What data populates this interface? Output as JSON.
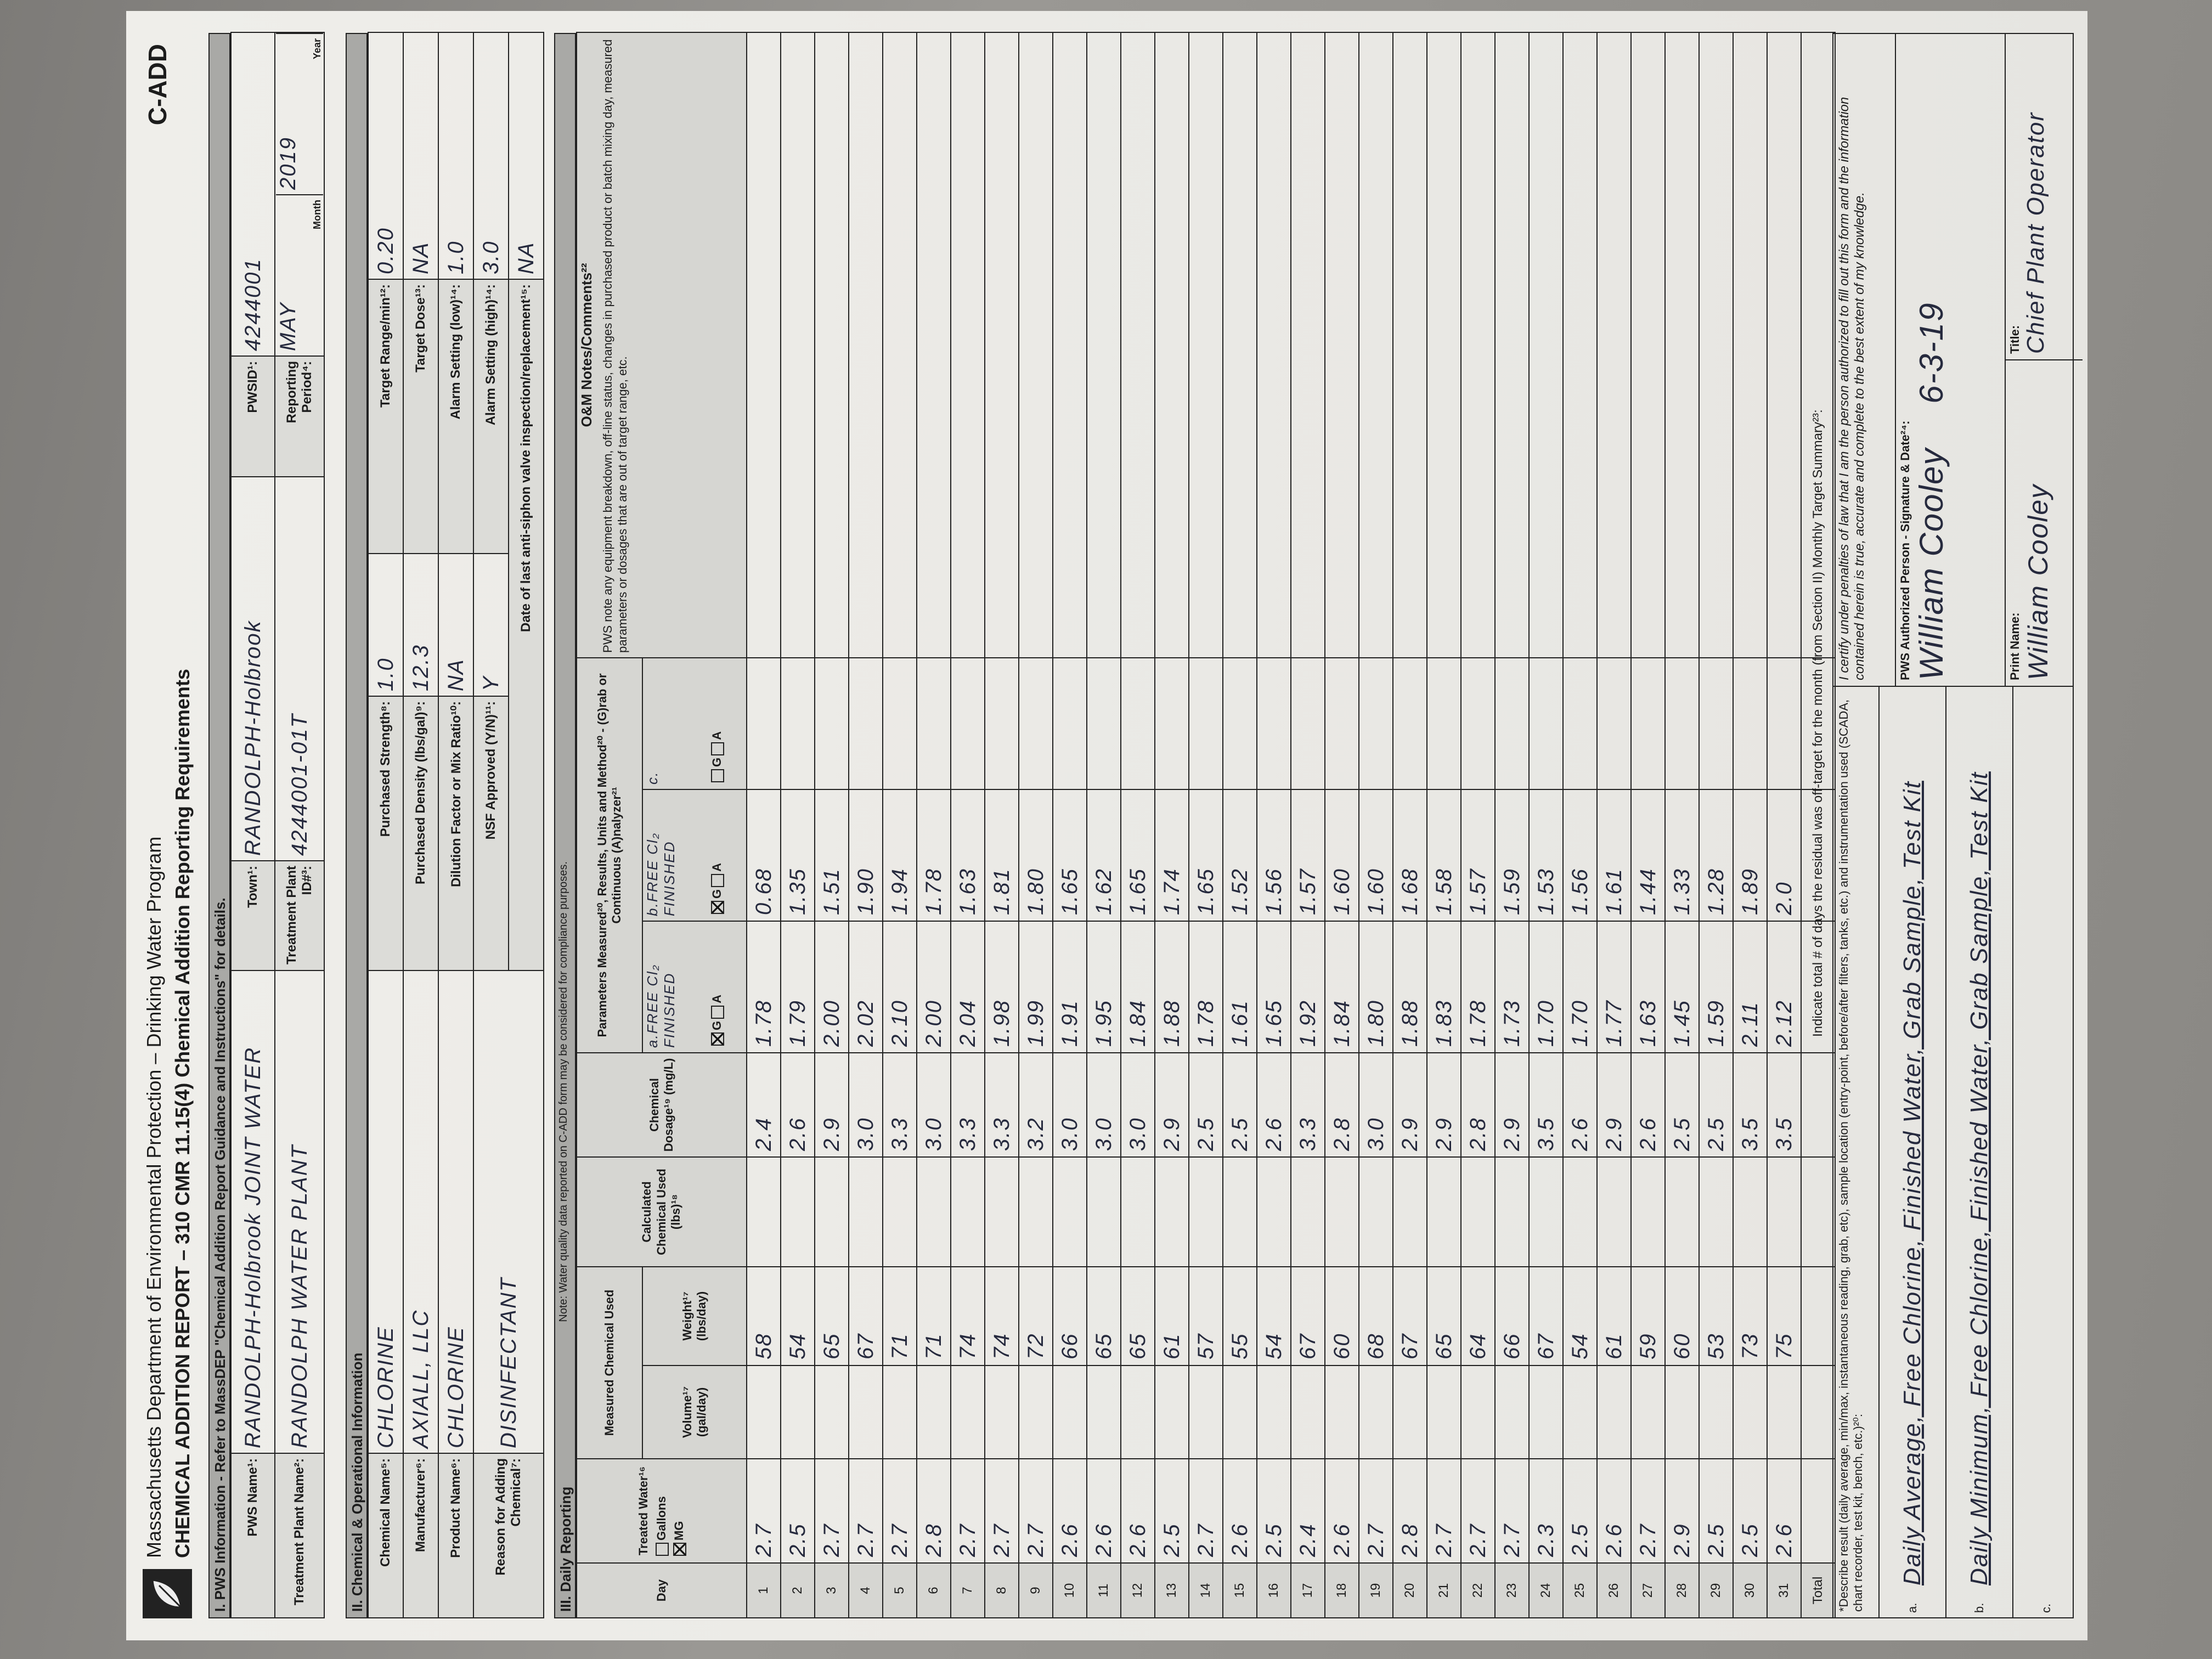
{
  "header": {
    "agency": "Massachusetts Department of Environmental Protection – Drinking Water Program",
    "title": "CHEMICAL ADDITION REPORT – 310 CMR 11.15(4) Chemical Addition Reporting Requirements",
    "form_code": "C-ADD"
  },
  "pws_info": {
    "heading": "I. PWS Information - Refer to MassDEP \"Chemical Addition Report Guidance and Instructions\" for details.",
    "pws_name": {
      "label": "PWS Name¹:",
      "value": "RANDOLPH-Holbrook JOINT WATER"
    },
    "town": {
      "label": "Town¹:",
      "value": "RANDOLPH-Holbrook"
    },
    "pwsid": {
      "label": "PWSID¹:",
      "value": "4244001"
    },
    "plant_name": {
      "label": "Treatment Plant Name²:",
      "value": "RANDOLPH WATER PLANT"
    },
    "plant_id": {
      "label": "Treatment Plant ID#³:",
      "value": "4244001-01T"
    },
    "period": {
      "label": "Reporting Period⁴:",
      "month": "MAY",
      "year": "2019",
      "month_label": "Month",
      "year_label": "Year"
    }
  },
  "chemical_info": {
    "heading": "II. Chemical & Operational Information",
    "name": {
      "label": "Chemical Name⁵:",
      "value": "CHLORINE"
    },
    "manufacturer": {
      "label": "Manufacturer⁶:",
      "value": "AXIALL, LLC"
    },
    "product": {
      "label": "Product Name⁶:",
      "value": "CHLORINE"
    },
    "reason": {
      "label": "Reason for Adding Chemical⁷:",
      "value": "DISINFECTANT"
    },
    "strength": {
      "label": "Purchased Strength⁸:",
      "value": "1.0"
    },
    "density": {
      "label": "Purchased Density (lbs/gal)⁹:",
      "value": "12.3"
    },
    "dilution": {
      "label": "Dilution Factor or Mix Ratio¹⁰:",
      "value": "NA"
    },
    "nsf": {
      "label": "NSF Approved (Y/N)¹¹:",
      "value": "Y"
    },
    "target_range": {
      "label": "Target Range/min¹²:",
      "value": "0.20"
    },
    "target_dose": {
      "label": "Target Dose¹³:",
      "value": "NA"
    },
    "alarm_low": {
      "label": "Alarm Setting (low)¹⁴:",
      "value": "1.0"
    },
    "alarm_high": {
      "label": "Alarm Setting (high)¹⁴:",
      "value": "3.0"
    },
    "valve_date": {
      "label": "Date of last anti-siphon valve inspection/replacement¹⁵:",
      "value": "NA"
    }
  },
  "daily_reporting": {
    "heading": "III. Daily Reporting",
    "note": "Note: Water quality data reported on C-ADD form may be considered for compliance purposes.",
    "columns": {
      "day": "Day",
      "treated": "Treated Water¹⁶",
      "unit_options": [
        "Gallons",
        "MG"
      ],
      "measured": "Measured Chemical Used",
      "volume": "Volume¹⁷ (gal/day)",
      "weight": "Weight¹⁷ (lbs/day)",
      "calculated": "Calculated Chemical Used (lbs)¹⁸",
      "dosage": "Chemical Dosage¹⁹ (mg/L)",
      "parameters": "Parameters Measured²⁰, Results, Units and Method²⁰ - (G)rab or Continuous (A)nalyzer²¹",
      "param_a": "a.FREE Cl₂ FINISHED",
      "param_b": "b.FREE Cl₂ FINISHED",
      "param_c": "c.",
      "method_options": [
        "G",
        "A"
      ],
      "notes": "O&M Notes/Comments²²",
      "notes_hint": "PWS note any equipment breakdown, off-line status, changes in purchased product or batch mixing day, measured parameters or dosages that are out of target range, etc."
    },
    "rows": [
      [
        1,
        "2.7",
        "58",
        "2.4",
        "1.78",
        "0.68"
      ],
      [
        2,
        "2.5",
        "54",
        "2.6",
        "1.79",
        "1.35"
      ],
      [
        3,
        "2.7",
        "65",
        "2.9",
        "2.00",
        "1.51"
      ],
      [
        4,
        "2.7",
        "67",
        "3.0",
        "2.02",
        "1.90"
      ],
      [
        5,
        "2.7",
        "71",
        "3.3",
        "2.10",
        "1.94"
      ],
      [
        6,
        "2.8",
        "71",
        "3.0",
        "2.00",
        "1.78"
      ],
      [
        7,
        "2.7",
        "74",
        "3.3",
        "2.04",
        "1.63"
      ],
      [
        8,
        "2.7",
        "74",
        "3.3",
        "1.98",
        "1.81"
      ],
      [
        9,
        "2.7",
        "72",
        "3.2",
        "1.99",
        "1.80"
      ],
      [
        10,
        "2.6",
        "66",
        "3.0",
        "1.91",
        "1.65"
      ],
      [
        11,
        "2.6",
        "65",
        "3.0",
        "1.95",
        "1.62"
      ],
      [
        12,
        "2.6",
        "65",
        "3.0",
        "1.84",
        "1.65"
      ],
      [
        13,
        "2.5",
        "61",
        "2.9",
        "1.88",
        "1.74"
      ],
      [
        14,
        "2.7",
        "57",
        "2.5",
        "1.78",
        "1.65"
      ],
      [
        15,
        "2.6",
        "55",
        "2.5",
        "1.61",
        "1.52"
      ],
      [
        16,
        "2.5",
        "54",
        "2.6",
        "1.65",
        "1.56"
      ],
      [
        17,
        "2.4",
        "67",
        "3.3",
        "1.92",
        "1.57"
      ],
      [
        18,
        "2.6",
        "60",
        "2.8",
        "1.84",
        "1.60"
      ],
      [
        19,
        "2.7",
        "68",
        "3.0",
        "1.80",
        "1.60"
      ],
      [
        20,
        "2.8",
        "67",
        "2.9",
        "1.88",
        "1.68"
      ],
      [
        21,
        "2.7",
        "65",
        "2.9",
        "1.83",
        "1.58"
      ],
      [
        22,
        "2.7",
        "64",
        "2.8",
        "1.78",
        "1.57"
      ],
      [
        23,
        "2.7",
        "66",
        "2.9",
        "1.73",
        "1.59"
      ],
      [
        24,
        "2.3",
        "67",
        "3.5",
        "1.70",
        "1.53"
      ],
      [
        25,
        "2.5",
        "54",
        "2.6",
        "1.70",
        "1.56"
      ],
      [
        26,
        "2.6",
        "61",
        "2.9",
        "1.77",
        "1.61"
      ],
      [
        27,
        "2.7",
        "59",
        "2.6",
        "1.63",
        "1.44"
      ],
      [
        28,
        "2.9",
        "60",
        "2.5",
        "1.45",
        "1.33"
      ],
      [
        29,
        "2.5",
        "53",
        "2.5",
        "1.59",
        "1.28"
      ],
      [
        30,
        "2.5",
        "73",
        "3.5",
        "2.11",
        "1.89"
      ],
      [
        31,
        "2.6",
        "75",
        "3.5",
        "2.12",
        "2.0"
      ]
    ],
    "total_label": "Total"
  },
  "footer": {
    "summary": "Indicate total # of days the residual was off-target for the month (from Section II) Monthly Target Summary²³:",
    "describe": "*Describe result (daily average, min/max, instantaneous reading, grab, etc), sample location (entry-point, before/after filters, tanks, etc.) and instrumentation used (SCADA, chart recorder, test kit, bench, etc.)²⁰:",
    "items": [
      {
        "marker": "a.",
        "text": "Daily Average, Free Chlorine, Finished Water, Grab Sample, Test Kit"
      },
      {
        "marker": "b.",
        "text": "Daily Minimum, Free Chlorine, Finished Water, Grab Sample, Test Kit"
      },
      {
        "marker": "c."
      }
    ],
    "certification": "I certify under penalties of law that I am the person authorized to fill out this form and the information contained herein is true, accurate and complete to the best extent of my knowledge.",
    "signature_label": "PWS Authorized Person - Signature & Date²⁴:",
    "signature": "William Cooley",
    "date": "6-3-19",
    "print_name_label": "Print Name:",
    "print_name": "William Cooley",
    "title_label": "Title:",
    "title": "Chief Plant Operator"
  }
}
